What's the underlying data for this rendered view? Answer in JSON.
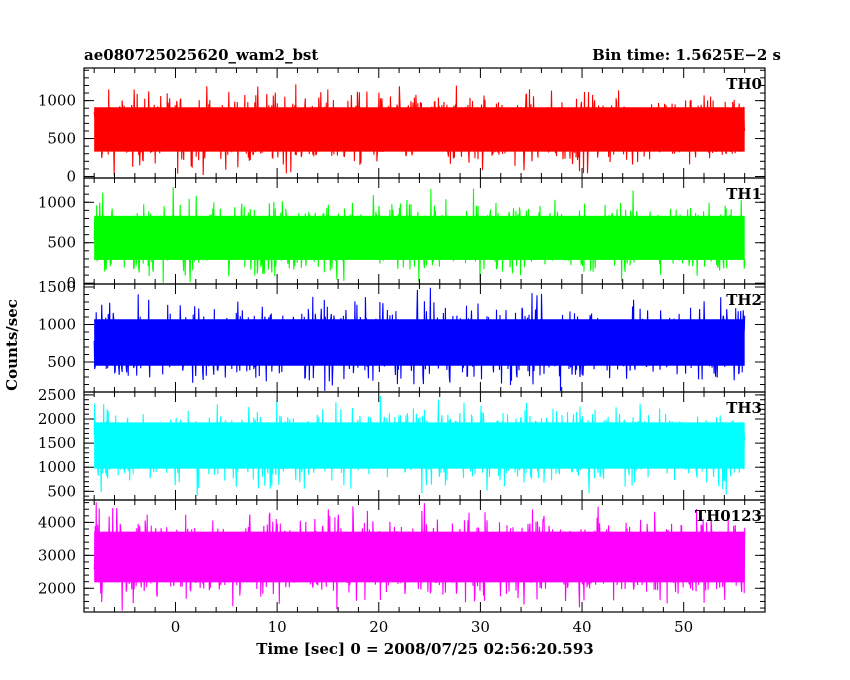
{
  "chart_data": {
    "type": "line",
    "title": "ae080725025620_wam2_bst",
    "bin_time": "Bin time: 1.5625E−2 s",
    "xlabel": "Time [sec] 0 = 2008/07/25 02:56:20.593",
    "ylabel": "Counts/sec",
    "xlim": [
      -9,
      58
    ],
    "data_x_range": [
      -8,
      56
    ],
    "x_ticks": [
      "0",
      "10",
      "20",
      "30",
      "40",
      "50"
    ],
    "grid": false,
    "panels": [
      {
        "name": "TH0",
        "color": "#ff0000",
        "ylim": [
          -20,
          1430
        ],
        "y_ticks": [
          0,
          500,
          1000
        ],
        "y_tick_labels": [
          "0",
          "500",
          "1000"
        ],
        "typical_range": [
          60,
          1230
        ],
        "mean": 620
      },
      {
        "name": "TH1",
        "color": "#00ff00",
        "ylim": [
          -10,
          1300
        ],
        "y_ticks": [
          0,
          500,
          1000
        ],
        "y_tick_labels": [
          "0",
          "500",
          "1000"
        ],
        "typical_range": [
          70,
          1160
        ],
        "mean": 560
      },
      {
        "name": "TH2",
        "color": "#0000ff",
        "ylim": [
          100,
          1540
        ],
        "y_ticks": [
          500,
          1000,
          1500
        ],
        "y_tick_labels": [
          "500",
          "1000",
          "1500"
        ],
        "typical_range": [
          150,
          1390
        ],
        "mean": 760
      },
      {
        "name": "TH3",
        "color": "#00ffff",
        "ylim": [
          320,
          2560
        ],
        "y_ticks": [
          500,
          1000,
          1500,
          2000,
          2500
        ],
        "y_tick_labels": [
          "500",
          "1000",
          "1500",
          "2000",
          "2500"
        ],
        "typical_range": [
          450,
          2370
        ],
        "mean": 1450
      },
      {
        "name": "TH0123",
        "color": "#ff00ff",
        "ylim": [
          1280,
          4680
        ],
        "y_ticks": [
          2000,
          3000,
          4000
        ],
        "y_tick_labels": [
          "2000",
          "3000",
          "4000"
        ],
        "typical_range": [
          1440,
          4520
        ],
        "mean": 2950
      }
    ]
  }
}
